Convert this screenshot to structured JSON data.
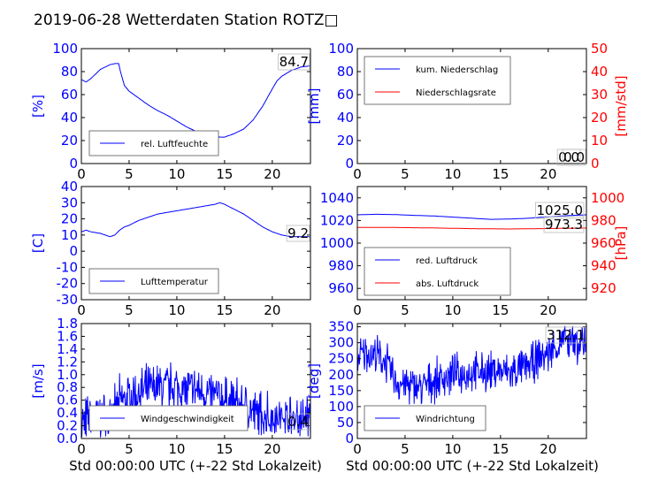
{
  "page_title": "2019-06-28 Wetterdaten Station ROTZ□",
  "colors": {
    "primary": "#0000ff",
    "secondary": "#ff0000",
    "frame": "#000000",
    "legend_border": "#555555"
  },
  "chart_data": [
    {
      "type": "line",
      "panel": "humidity",
      "ylabel": "[%]",
      "xlim": [
        0,
        24
      ],
      "ylim": [
        0,
        100
      ],
      "x_ticks": [
        0,
        5,
        10,
        15,
        20
      ],
      "y_ticks": [
        0,
        20,
        40,
        60,
        80,
        100
      ],
      "legend_position": "lower-center",
      "value_annotation": "84.7",
      "series": [
        {
          "name": "rel. Luftfeuchte",
          "color": "#0000ff",
          "noise": 0,
          "x": [
            0,
            0.5,
            1,
            1.5,
            2,
            2.5,
            3,
            3.5,
            3.9,
            4.1,
            4.5,
            5,
            6,
            7,
            8,
            9,
            10,
            11,
            12,
            13,
            14,
            14.5,
            15,
            16,
            17,
            18,
            19,
            20,
            20.5,
            21,
            22,
            23,
            24
          ],
          "y": [
            73,
            71,
            74,
            78,
            82,
            84,
            86,
            87,
            87,
            80,
            68,
            63,
            57,
            51,
            46,
            42,
            37,
            32,
            28,
            26,
            24,
            23,
            23,
            26,
            30,
            38,
            50,
            65,
            72,
            76,
            81,
            84,
            85
          ]
        }
      ]
    },
    {
      "type": "line",
      "panel": "precipitation",
      "ylabel": "[mm]",
      "y2label": "[mm/std]",
      "xlim": [
        0,
        24
      ],
      "ylim": [
        0,
        100
      ],
      "y2lim": [
        0,
        50
      ],
      "x_ticks": [
        0,
        5,
        10,
        15,
        20
      ],
      "y_ticks": [
        0,
        20,
        40,
        60,
        80,
        100
      ],
      "y2_ticks": [
        0,
        10,
        20,
        30,
        40,
        50
      ],
      "legend_position": "upper-center",
      "value_annotation": "0.0",
      "value_annotation_2": "0.0",
      "series": [
        {
          "name": "kum. Niederschlag",
          "color": "#0000ff",
          "axis": "left",
          "noise": 0,
          "x": [
            0,
            24
          ],
          "y": [
            0,
            0
          ]
        },
        {
          "name": "Niederschlagsrate",
          "color": "#ff0000",
          "axis": "right",
          "noise": 0,
          "x": [
            0,
            24
          ],
          "y": [
            0,
            0
          ]
        }
      ]
    },
    {
      "type": "line",
      "panel": "temperature",
      "ylabel": "[C]",
      "xlim": [
        0,
        24
      ],
      "ylim": [
        -30,
        40
      ],
      "x_ticks": [
        0,
        5,
        10,
        15,
        20
      ],
      "y_ticks": [
        -30,
        -20,
        -10,
        0,
        10,
        20,
        30,
        40
      ],
      "legend_position": "lower-center",
      "value_annotation": "9.2",
      "series": [
        {
          "name": "Lufttemperatur",
          "color": "#0000ff",
          "noise": 0,
          "x": [
            0,
            0.5,
            1,
            2,
            3,
            3.5,
            4,
            4.5,
            5,
            6,
            7,
            8,
            9,
            10,
            11,
            12,
            13,
            14,
            14.5,
            15,
            16,
            17,
            18,
            19,
            20,
            21,
            22,
            23,
            24
          ],
          "y": [
            12,
            13,
            12,
            11,
            9,
            10,
            13,
            15,
            16,
            19,
            21,
            23,
            24,
            25,
            26,
            27,
            28,
            29,
            30,
            29,
            26,
            23,
            19,
            15,
            12,
            10,
            9,
            9,
            9
          ]
        }
      ]
    },
    {
      "type": "line",
      "panel": "pressure",
      "y2label": "[hPa]",
      "xlim": [
        0,
        24
      ],
      "ylim": [
        950,
        1050
      ],
      "y2lim": [
        910,
        1010
      ],
      "x_ticks": [
        0,
        5,
        10,
        15,
        20
      ],
      "y_ticks": [
        960,
        980,
        1000,
        1020,
        1040
      ],
      "y2_ticks": [
        920,
        940,
        960,
        980,
        1000
      ],
      "legend_position": "lower-center",
      "value_annotation": "1025.0",
      "value_annotation_2": "973.3",
      "series": [
        {
          "name": "red. Luftdruck",
          "color": "#0000ff",
          "axis": "left",
          "noise": 0,
          "x": [
            0,
            2,
            4,
            6,
            8,
            10,
            12,
            14,
            16,
            18,
            20,
            22,
            24
          ],
          "y": [
            1025,
            1025.5,
            1025.2,
            1024.5,
            1024,
            1023,
            1022,
            1021,
            1021.3,
            1022,
            1023.3,
            1024.3,
            1025
          ]
        },
        {
          "name": "abs. Luftdruck",
          "color": "#ff0000",
          "axis": "right",
          "noise": 0,
          "x": [
            0,
            4,
            8,
            12,
            16,
            20,
            24
          ],
          "y": [
            973.8,
            973.8,
            973.4,
            972.8,
            972.5,
            972.9,
            973.3
          ]
        }
      ]
    },
    {
      "type": "line",
      "panel": "wind_speed",
      "ylabel": "[m/s]",
      "xlim": [
        0,
        24
      ],
      "ylim": [
        0,
        1.8
      ],
      "x_ticks": [
        0,
        5,
        10,
        15,
        20
      ],
      "y_ticks": [
        0.0,
        0.2,
        0.4,
        0.6,
        0.8,
        1.0,
        1.2,
        1.4,
        1.6,
        1.8
      ],
      "legend_position": "lower-center",
      "value_annotation": "0.4",
      "series": [
        {
          "name": "Windgeschwindigkeit",
          "color": "#0000ff",
          "noise": 0.35,
          "x": [
            0,
            1,
            2,
            3,
            3.5,
            4,
            5,
            6,
            7,
            8,
            9,
            10,
            11,
            12,
            13,
            14,
            15,
            16,
            17,
            18,
            19,
            20,
            21,
            22,
            23,
            24
          ],
          "y": [
            0.25,
            0.3,
            0.35,
            0.3,
            0.4,
            0.55,
            0.65,
            0.7,
            0.75,
            0.8,
            0.8,
            0.8,
            0.75,
            0.75,
            0.7,
            0.65,
            0.6,
            0.55,
            0.5,
            0.4,
            0.35,
            0.3,
            0.3,
            0.3,
            0.3,
            0.35
          ]
        }
      ]
    },
    {
      "type": "line",
      "panel": "wind_direction",
      "ylabel": "[deg]",
      "xlim": [
        0,
        24
      ],
      "ylim": [
        0,
        360
      ],
      "x_ticks": [
        0,
        5,
        10,
        15,
        20
      ],
      "y_ticks": [
        0,
        50,
        100,
        150,
        200,
        250,
        300,
        350
      ],
      "legend_position": "lower-center",
      "value_annotation": "312.1",
      "series": [
        {
          "name": "Windrichtung",
          "color": "#0000ff",
          "noise": 55,
          "x": [
            0,
            1,
            2,
            3,
            4,
            5,
            6,
            7,
            8,
            9,
            10,
            11,
            12,
            13,
            14,
            15,
            16,
            17,
            18,
            19,
            20,
            21,
            22,
            23,
            24
          ],
          "y": [
            250,
            270,
            260,
            240,
            180,
            170,
            160,
            165,
            180,
            190,
            200,
            200,
            205,
            205,
            210,
            210,
            205,
            215,
            230,
            250,
            270,
            290,
            300,
            300,
            300
          ]
        }
      ]
    }
  ],
  "xlabel_left": "Std 00:00:00 UTC (+-22 Std Lokalzeit)",
  "xlabel_right": "Std 00:00:00 UTC (+-22 Std Lokalzeit)"
}
